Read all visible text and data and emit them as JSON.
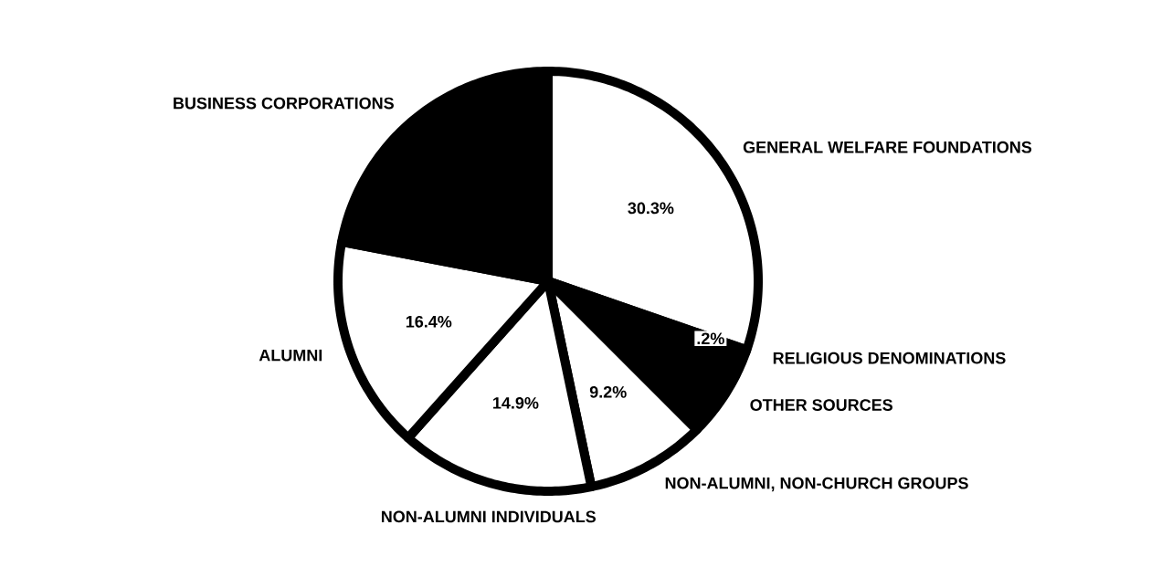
{
  "chart_data": {
    "type": "pie",
    "categories": [
      "GENERAL WELFARE FOUNDATIONS",
      "RELIGIOUS DENOMINATIONS",
      "OTHER SOURCES",
      "NON-ALUMNI, NON-CHURCH GROUPS",
      "NON-ALUMNI INDIVIDUALS",
      "ALUMNI",
      "BUSINESS CORPORATIONS"
    ],
    "values": [
      30.3,
      0.2,
      7.0,
      9.2,
      14.9,
      16.4,
      22.0
    ],
    "colors": [
      "#ffffff",
      "#ffffff",
      "#000000",
      "#ffffff",
      "#ffffff",
      "#ffffff",
      "#000000"
    ],
    "value_labels": [
      "30.3%",
      ".2%",
      null,
      "9.2%",
      "14.9%",
      "16.4%",
      null
    ]
  }
}
